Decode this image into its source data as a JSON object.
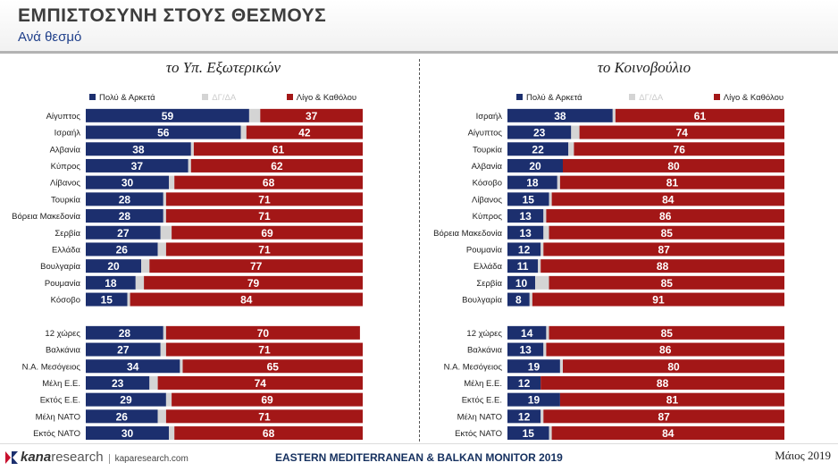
{
  "header": {
    "title": "ΕΜΠΙΣΤΟΣΥΝΗ ΣΤΟΥΣ ΘΕΣΜΟΥΣ",
    "subtitle": "Ανά θεσμό"
  },
  "legend": {
    "positive": "Πολύ & Αρκετά",
    "dk": "ΔΓ/ΔΑ",
    "negative": "Λίγο & Καθόλου"
  },
  "colors": {
    "positive": "#1c2f6e",
    "dk": "#d4d4d4",
    "negative": "#a31717",
    "label_text": "#ffffff"
  },
  "footer": {
    "logo_word_1": "kana",
    "logo_word_2": "research",
    "logo_url": "kaparesearch.com",
    "event": "EASTERN MEDITERRANEAN & BALKAN MONITOR 2019",
    "date": "Μάιος 2019"
  },
  "chart_data": [
    {
      "type": "bar",
      "orientation": "horizontal",
      "stacked": true,
      "title": "το Υπ. Εξωτερικών",
      "series": [
        {
          "name": "Πολύ & Αρκετά",
          "values": [
            59,
            56,
            38,
            37,
            30,
            28,
            28,
            27,
            26,
            20,
            18,
            15,
            28,
            27,
            34,
            23,
            29,
            26,
            30
          ]
        },
        {
          "name": "ΔΓ/ΔΑ",
          "values": [
            4,
            2,
            1,
            1,
            2,
            1,
            1,
            4,
            3,
            3,
            3,
            1,
            1,
            2,
            1,
            3,
            2,
            3,
            2
          ]
        },
        {
          "name": "Λίγο & Καθόλου",
          "values": [
            37,
            42,
            61,
            62,
            68,
            71,
            71,
            69,
            71,
            77,
            79,
            84,
            70,
            71,
            65,
            74,
            69,
            71,
            68
          ]
        }
      ],
      "categories": [
        "Αίγυπτος",
        "Ισραήλ",
        "Αλβανία",
        "Κύπρος",
        "Λίβανος",
        "Τουρκία",
        "Βόρεια Μακεδονία",
        "Σερβία",
        "Ελλάδα",
        "Βουλγαρία",
        "Ρουμανία",
        "Κόσοβο",
        "12 χώρες",
        "Βαλκάνια",
        "Ν.Α. Μεσόγειος",
        "Μέλη Ε.Ε.",
        "Εκτός Ε.Ε.",
        "Μέλη ΝΑΤΟ",
        "Εκτός ΝΑΤΟ"
      ],
      "group_break_after": 12,
      "legend_position": "top",
      "grid": false
    },
    {
      "type": "bar",
      "orientation": "horizontal",
      "stacked": true,
      "title": "το Κοινοβούλιο",
      "series": [
        {
          "name": "Πολύ & Αρκετά",
          "values": [
            38,
            23,
            22,
            20,
            18,
            15,
            13,
            13,
            12,
            11,
            10,
            8,
            14,
            13,
            19,
            12,
            19,
            12,
            15
          ]
        },
        {
          "name": "ΔΓ/ΔΑ",
          "values": [
            1,
            3,
            2,
            0,
            1,
            1,
            1,
            2,
            1,
            1,
            5,
            1,
            1,
            1,
            1,
            0,
            0,
            1,
            1
          ]
        },
        {
          "name": "Λίγο & Καθόλου",
          "values": [
            61,
            74,
            76,
            80,
            81,
            84,
            86,
            85,
            87,
            88,
            85,
            91,
            85,
            86,
            80,
            88,
            81,
            87,
            84
          ]
        }
      ],
      "categories": [
        "Ισραήλ",
        "Αίγυπτος",
        "Τουρκία",
        "Αλβανία",
        "Κόσοβο",
        "Λίβανος",
        "Κύπρος",
        "Βόρεια Μακεδονία",
        "Ρουμανία",
        "Ελλάδα",
        "Σερβία",
        "Βουλγαρία",
        "12 χώρες",
        "Βαλκάνια",
        "Ν.Α. Μεσόγειος",
        "Μέλη Ε.Ε.",
        "Εκτός Ε.Ε.",
        "Μέλη ΝΑΤΟ",
        "Εκτός ΝΑΤΟ"
      ],
      "group_break_after": 12,
      "legend_position": "top",
      "grid": false
    }
  ]
}
